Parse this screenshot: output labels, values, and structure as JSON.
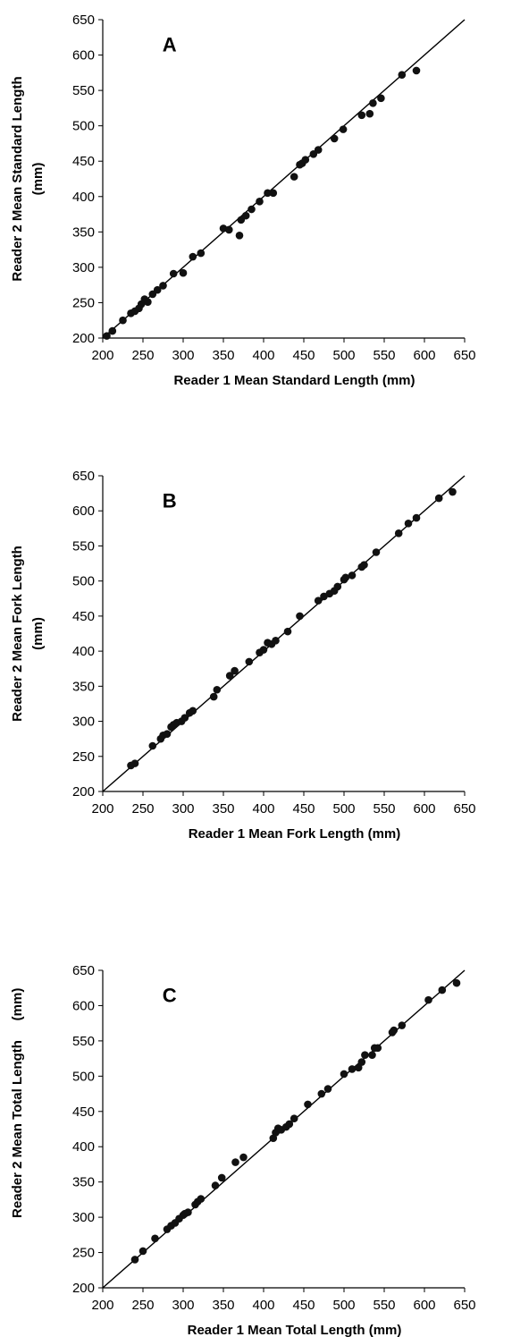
{
  "chart_data": [
    {
      "type": "scatter",
      "panel_label": "A",
      "xlabel": "Reader 1 Mean Standard Length (mm)",
      "ylabel": "Reader 2 Mean Standard Length",
      "ylabel_unit": "(mm)",
      "xlim": [
        200,
        650
      ],
      "ylim": [
        200,
        650
      ],
      "xticks": [
        "200",
        "250",
        "300",
        "350",
        "400",
        "450",
        "500",
        "550",
        "600",
        "650"
      ],
      "yticks": [
        "200",
        "250",
        "300",
        "350",
        "400",
        "450",
        "500",
        "550",
        "600",
        "650"
      ],
      "reference_line": [
        [
          200,
          200
        ],
        [
          650,
          650
        ]
      ],
      "points": [
        [
          205,
          203
        ],
        [
          212,
          210
        ],
        [
          225,
          225
        ],
        [
          235,
          235
        ],
        [
          240,
          238
        ],
        [
          245,
          242
        ],
        [
          248,
          248
        ],
        [
          252,
          255
        ],
        [
          256,
          251
        ],
        [
          262,
          262
        ],
        [
          268,
          268
        ],
        [
          275,
          274
        ],
        [
          288,
          291
        ],
        [
          300,
          292
        ],
        [
          312,
          315
        ],
        [
          322,
          320
        ],
        [
          350,
          355
        ],
        [
          357,
          353
        ],
        [
          370,
          345
        ],
        [
          372,
          367
        ],
        [
          378,
          373
        ],
        [
          385,
          382
        ],
        [
          395,
          393
        ],
        [
          405,
          405
        ],
        [
          412,
          405
        ],
        [
          438,
          428
        ],
        [
          445,
          445
        ],
        [
          448,
          447
        ],
        [
          452,
          452
        ],
        [
          462,
          460
        ],
        [
          468,
          466
        ],
        [
          488,
          482
        ],
        [
          499,
          495
        ],
        [
          522,
          515
        ],
        [
          532,
          517
        ],
        [
          536,
          532
        ],
        [
          546,
          539
        ],
        [
          572,
          572
        ],
        [
          590,
          578
        ]
      ]
    },
    {
      "type": "scatter",
      "panel_label": "B",
      "xlabel": "Reader 1 Mean Fork Length (mm)",
      "ylabel": "Reader 2 Mean Fork Length",
      "ylabel_unit": "(mm)",
      "xlim": [
        200,
        650
      ],
      "ylim": [
        200,
        650
      ],
      "xticks": [
        "200",
        "250",
        "300",
        "350",
        "400",
        "450",
        "500",
        "550",
        "600",
        "650"
      ],
      "yticks": [
        "200",
        "250",
        "300",
        "350",
        "400",
        "450",
        "500",
        "550",
        "600",
        "650"
      ],
      "reference_line": [
        [
          200,
          200
        ],
        [
          650,
          650
        ]
      ],
      "points": [
        [
          235,
          237
        ],
        [
          240,
          240
        ],
        [
          262,
          265
        ],
        [
          272,
          275
        ],
        [
          275,
          280
        ],
        [
          280,
          282
        ],
        [
          285,
          292
        ],
        [
          288,
          295
        ],
        [
          292,
          298
        ],
        [
          298,
          300
        ],
        [
          302,
          305
        ],
        [
          308,
          312
        ],
        [
          312,
          315
        ],
        [
          338,
          335
        ],
        [
          342,
          345
        ],
        [
          358,
          365
        ],
        [
          364,
          372
        ],
        [
          382,
          385
        ],
        [
          395,
          398
        ],
        [
          400,
          402
        ],
        [
          405,
          412
        ],
        [
          410,
          410
        ],
        [
          415,
          415
        ],
        [
          430,
          428
        ],
        [
          445,
          450
        ],
        [
          468,
          472
        ],
        [
          475,
          478
        ],
        [
          482,
          482
        ],
        [
          488,
          486
        ],
        [
          492,
          492
        ],
        [
          500,
          502
        ],
        [
          502,
          505
        ],
        [
          510,
          508
        ],
        [
          522,
          520
        ],
        [
          525,
          523
        ],
        [
          540,
          541
        ],
        [
          568,
          568
        ],
        [
          580,
          582
        ],
        [
          590,
          590
        ],
        [
          618,
          618
        ],
        [
          635,
          627
        ]
      ]
    },
    {
      "type": "scatter",
      "panel_label": "C",
      "xlabel": "Reader 1 Mean Total Length (mm)",
      "ylabel": "Reader 2 Mean Total Length",
      "ylabel_unit": "(mm)",
      "xlim": [
        200,
        650
      ],
      "ylim": [
        200,
        650
      ],
      "xticks": [
        "200",
        "250",
        "300",
        "350",
        "400",
        "450",
        "500",
        "550",
        "600",
        "650"
      ],
      "yticks": [
        "200",
        "250",
        "300",
        "350",
        "400",
        "450",
        "500",
        "550",
        "600",
        "650"
      ],
      "reference_line": [
        [
          200,
          200
        ],
        [
          650,
          650
        ]
      ],
      "points": [
        [
          240,
          240
        ],
        [
          250,
          252
        ],
        [
          265,
          270
        ],
        [
          280,
          283
        ],
        [
          285,
          288
        ],
        [
          290,
          292
        ],
        [
          295,
          298
        ],
        [
          300,
          303
        ],
        [
          302,
          305
        ],
        [
          306,
          307
        ],
        [
          315,
          318
        ],
        [
          318,
          322
        ],
        [
          322,
          326
        ],
        [
          340,
          345
        ],
        [
          348,
          356
        ],
        [
          365,
          378
        ],
        [
          375,
          385
        ],
        [
          412,
          412
        ],
        [
          415,
          420
        ],
        [
          418,
          426
        ],
        [
          422,
          424
        ],
        [
          428,
          428
        ],
        [
          432,
          432
        ],
        [
          438,
          440
        ],
        [
          455,
          460
        ],
        [
          472,
          475
        ],
        [
          480,
          482
        ],
        [
          500,
          503
        ],
        [
          510,
          510
        ],
        [
          518,
          512
        ],
        [
          522,
          520
        ],
        [
          526,
          530
        ],
        [
          535,
          530
        ],
        [
          538,
          540
        ],
        [
          542,
          540
        ],
        [
          560,
          562
        ],
        [
          562,
          565
        ],
        [
          572,
          572
        ],
        [
          605,
          608
        ],
        [
          622,
          622
        ],
        [
          640,
          632
        ]
      ]
    }
  ]
}
